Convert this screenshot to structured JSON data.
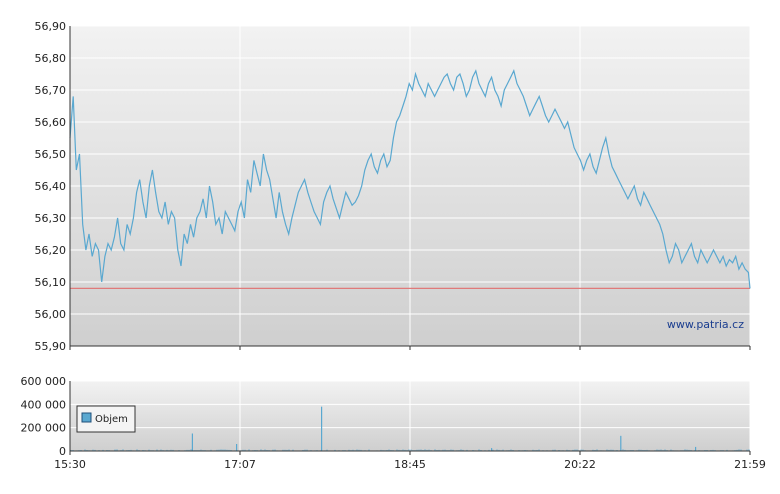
{
  "chart_data": [
    {
      "type": "line",
      "ylim": [
        55.9,
        56.9
      ],
      "yticks": [
        "55,90",
        "56,00",
        "56,10",
        "56,20",
        "56,30",
        "56,40",
        "56,50",
        "56,60",
        "56,70",
        "56,80",
        "56,90"
      ],
      "ytick_values": [
        55.9,
        56.0,
        56.1,
        56.2,
        56.3,
        56.4,
        56.5,
        56.6,
        56.7,
        56.8,
        56.9
      ],
      "reference_line": 56.08,
      "reference_color": "#e07a7a",
      "line_color": "#5aa8d0",
      "watermark": "www.patria.cz",
      "grid": true,
      "series": [
        {
          "x": [
            0,
            2,
            4,
            6,
            8,
            10,
            12,
            14,
            16,
            18,
            20,
            22,
            24,
            26,
            28,
            30,
            32,
            34,
            36,
            38,
            40,
            42,
            44,
            46,
            48,
            50,
            52,
            54,
            56,
            58,
            60,
            62,
            64,
            66,
            68,
            70,
            72,
            74,
            76,
            78,
            80,
            82,
            84,
            86,
            88,
            90,
            92,
            94,
            96,
            98,
            100,
            102,
            104,
            106,
            108,
            110,
            112,
            114,
            116,
            118,
            120,
            122,
            124,
            126,
            128,
            130,
            132,
            134,
            136,
            138,
            140,
            142,
            144,
            146,
            148,
            150,
            152,
            154,
            156,
            158,
            160,
            162,
            164,
            166,
            168,
            170,
            172,
            174,
            176,
            178,
            180,
            182,
            184,
            186,
            188,
            190,
            192,
            194,
            196,
            198,
            200,
            202,
            204,
            206,
            208,
            210,
            212,
            214,
            216,
            218,
            220,
            222,
            224,
            226,
            228,
            230,
            232,
            234,
            236,
            238,
            240,
            242,
            244,
            246,
            248,
            250,
            252,
            254,
            256,
            258,
            260,
            262,
            264,
            266,
            268,
            270,
            272,
            274,
            276,
            278,
            280,
            282,
            284,
            286,
            288,
            290,
            292,
            294,
            296,
            298,
            300,
            302,
            304,
            306,
            308,
            310,
            312,
            314,
            316,
            318,
            320,
            322,
            324,
            326,
            328,
            330,
            332,
            334,
            336,
            338,
            340,
            342,
            344,
            346,
            348,
            350,
            352,
            354,
            356,
            358,
            360,
            362,
            364,
            366,
            368,
            370,
            372,
            374,
            376,
            378,
            380,
            382,
            384,
            386,
            388,
            390,
            392,
            394,
            396,
            398,
            400,
            402,
            404,
            406,
            408,
            410,
            412,
            414,
            416,
            418,
            420,
            422,
            424,
            426,
            428,
            429
          ],
          "y": [
            56.55,
            56.68,
            56.45,
            56.5,
            56.28,
            56.2,
            56.25,
            56.18,
            56.22,
            56.2,
            56.1,
            56.18,
            56.22,
            56.2,
            56.24,
            56.3,
            56.22,
            56.2,
            56.28,
            56.25,
            56.3,
            56.38,
            56.42,
            56.35,
            56.3,
            56.4,
            56.45,
            56.38,
            56.32,
            56.3,
            56.35,
            56.28,
            56.32,
            56.3,
            56.2,
            56.15,
            56.25,
            56.22,
            56.28,
            56.24,
            56.3,
            56.32,
            56.36,
            56.3,
            56.4,
            56.35,
            56.28,
            56.3,
            56.25,
            56.32,
            56.3,
            56.28,
            56.26,
            56.32,
            56.35,
            56.3,
            56.42,
            56.38,
            56.48,
            56.44,
            56.4,
            56.5,
            56.45,
            56.42,
            56.36,
            56.3,
            56.38,
            56.32,
            56.28,
            56.25,
            56.3,
            56.34,
            56.38,
            56.4,
            56.42,
            56.38,
            56.35,
            56.32,
            56.3,
            56.28,
            56.35,
            56.38,
            56.4,
            56.36,
            56.33,
            56.3,
            56.34,
            56.38,
            56.36,
            56.34,
            56.35,
            56.37,
            56.4,
            56.45,
            56.48,
            56.5,
            56.46,
            56.44,
            56.48,
            56.5,
            56.46,
            56.48,
            56.55,
            56.6,
            56.62,
            56.65,
            56.68,
            56.72,
            56.7,
            56.75,
            56.72,
            56.7,
            56.68,
            56.72,
            56.7,
            56.68,
            56.7,
            56.72,
            56.74,
            56.75,
            56.72,
            56.7,
            56.74,
            56.75,
            56.72,
            56.68,
            56.7,
            56.74,
            56.76,
            56.72,
            56.7,
            56.68,
            56.72,
            56.74,
            56.7,
            56.68,
            56.65,
            56.7,
            56.72,
            56.74,
            56.76,
            56.72,
            56.7,
            56.68,
            56.65,
            56.62,
            56.64,
            56.66,
            56.68,
            56.65,
            56.62,
            56.6,
            56.62,
            56.64,
            56.62,
            56.6,
            56.58,
            56.6,
            56.56,
            56.52,
            56.5,
            56.48,
            56.45,
            56.48,
            56.5,
            56.46,
            56.44,
            56.48,
            56.52,
            56.55,
            56.5,
            56.46,
            56.44,
            56.42,
            56.4,
            56.38,
            56.36,
            56.38,
            56.4,
            56.36,
            56.34,
            56.38,
            56.36,
            56.34,
            56.32,
            56.3,
            56.28,
            56.25,
            56.2,
            56.16,
            56.18,
            56.22,
            56.2,
            56.16,
            56.18,
            56.2,
            56.22,
            56.18,
            56.16,
            56.2,
            56.18,
            56.16,
            56.18,
            56.2,
            56.18,
            56.16,
            56.18,
            56.15,
            56.17,
            56.16,
            56.18,
            56.14,
            56.16,
            56.14,
            56.13,
            56.08
          ]
        }
      ]
    },
    {
      "type": "bar",
      "ylim": [
        0,
        600000
      ],
      "yticks": [
        "0",
        "200 000",
        "400 000",
        "600 000"
      ],
      "ytick_values": [
        0,
        200000,
        400000,
        600000
      ],
      "xticks": [
        "15:30",
        "17:07",
        "18:45",
        "20:22",
        "21:59"
      ],
      "bar_color": "#5aa8d0",
      "legend": [
        "Objem"
      ],
      "legend_position": "top-left",
      "grid": true,
      "spikes": [
        {
          "x": 0.18,
          "v": 150000
        },
        {
          "x": 0.245,
          "v": 60000
        },
        {
          "x": 0.37,
          "v": 380000
        },
        {
          "x": 0.81,
          "v": 130000
        },
        {
          "x": 0.62,
          "v": 25000
        },
        {
          "x": 0.92,
          "v": 35000
        }
      ]
    }
  ]
}
